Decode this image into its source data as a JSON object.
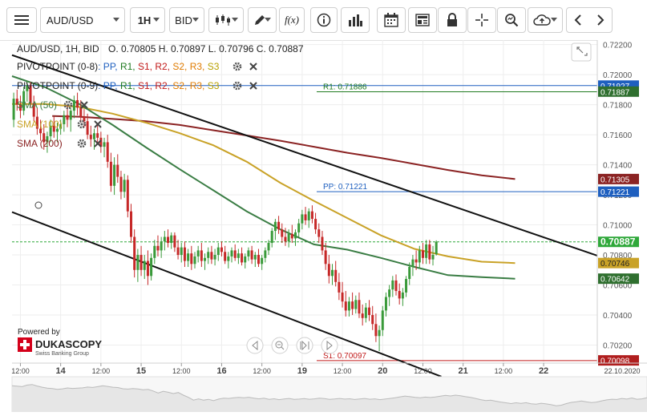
{
  "toolbar": {
    "symbol": "AUD/USD",
    "timeframe": "1H",
    "price_side": "BID",
    "fx_label": "f(x)"
  },
  "header": {
    "instrument_line": "AUD/USD, 1H, BID",
    "ohlc_line": "O. 0.70805 H. 0.70897 L. 0.70796 C. 0.70887"
  },
  "indicators": [
    {
      "name": "PIVOTPOINT (0-8)",
      "color": "#222222",
      "params": [
        {
          "t": ": PP,",
          "c": "#1e5fbf"
        },
        {
          "t": " R1,",
          "c": "#1f7a1f"
        },
        {
          "t": " S1,",
          "c": "#c21b1b"
        },
        {
          "t": " R2,",
          "c": "#c21b1b"
        },
        {
          "t": " S2,",
          "c": "#e07b00"
        },
        {
          "t": " R3,",
          "c": "#e07b00"
        },
        {
          "t": " S3",
          "c": "#b8a000"
        }
      ]
    },
    {
      "name": "PIVOTPOINT (0-9)",
      "color": "#222222",
      "params": [
        {
          "t": ": PP,",
          "c": "#1e5fbf"
        },
        {
          "t": " R1,",
          "c": "#1f7a1f"
        },
        {
          "t": " S1,",
          "c": "#c21b1b"
        },
        {
          "t": " R2,",
          "c": "#c21b1b"
        },
        {
          "t": " S2,",
          "c": "#e07b00"
        },
        {
          "t": " R3,",
          "c": "#e07b00"
        },
        {
          "t": " S3",
          "c": "#b8a000"
        }
      ]
    },
    {
      "name": "SMA (50)",
      "color": "#3a7d44",
      "params": []
    },
    {
      "name": "SMA (100)",
      "color": "#c9a227",
      "params": []
    },
    {
      "name": "SMA (200)",
      "color": "#8b2323",
      "params": []
    }
  ],
  "branding": {
    "powered_by": "Powered by",
    "logo_text": "DUKASCOPY",
    "logo_sub": "Swiss Banking Group"
  },
  "pivot_labels": {
    "r1": "R1: 0.71886",
    "pp": "PP: 0.71221",
    "s1": "S1: 0.70097"
  },
  "date_label": "22.10.2020",
  "colors": {
    "up": "#3a9a3a",
    "down": "#c62828",
    "sma50": "#3a7d44",
    "sma100": "#c9a227",
    "sma200": "#8b2323",
    "pp": "#1e5fbf",
    "r1": "#1f7a1f",
    "s1": "#c21b1b",
    "trend": "#111111"
  },
  "chart_data": {
    "type": "candlestick",
    "symbol": "AUD/USD",
    "timeframe": "1H",
    "ylim": [
      0.7008,
      0.7223
    ],
    "y_ticks": [
      "0.70200",
      "0.70400",
      "0.70600",
      "0.70800",
      "0.71000",
      "0.71200",
      "0.71400",
      "0.71600",
      "0.71800",
      "0.72000",
      "0.72200"
    ],
    "x_ticks": [
      {
        "label": "12:00",
        "t": 2.5
      },
      {
        "label": "14",
        "t": 14.5,
        "bold": true
      },
      {
        "label": "12:00",
        "t": 26.5
      },
      {
        "label": "15",
        "t": 38.5,
        "bold": true
      },
      {
        "label": "12:00",
        "t": 50.5
      },
      {
        "label": "16",
        "t": 62.5,
        "bold": true
      },
      {
        "label": "12:00",
        "t": 74.5
      },
      {
        "label": "19",
        "t": 86.5,
        "bold": true
      },
      {
        "label": "12:00",
        "t": 98.5
      },
      {
        "label": "20",
        "t": 110.5,
        "bold": true
      },
      {
        "label": "12:00",
        "t": 122.5
      },
      {
        "label": "21",
        "t": 134.5,
        "bold": true
      },
      {
        "label": "12:00",
        "t": 146.5
      },
      {
        "label": "22",
        "t": 158.5,
        "bold": true
      }
    ],
    "candles": [
      [
        0.717,
        0.7188,
        0.7165,
        0.7184
      ],
      [
        0.7184,
        0.719,
        0.7176,
        0.718
      ],
      [
        0.718,
        0.7186,
        0.7171,
        0.7176
      ],
      [
        0.7176,
        0.7192,
        0.7173,
        0.7189
      ],
      [
        0.7189,
        0.7196,
        0.7182,
        0.7193
      ],
      [
        0.7193,
        0.7195,
        0.7178,
        0.7181
      ],
      [
        0.7181,
        0.7186,
        0.7169,
        0.7172
      ],
      [
        0.7172,
        0.7178,
        0.716,
        0.7164
      ],
      [
        0.7164,
        0.717,
        0.7156,
        0.7161
      ],
      [
        0.7161,
        0.7167,
        0.715,
        0.7155
      ],
      [
        0.7155,
        0.7162,
        0.7148,
        0.7159
      ],
      [
        0.7159,
        0.717,
        0.7155,
        0.7166
      ],
      [
        0.7166,
        0.7172,
        0.7158,
        0.7162
      ],
      [
        0.7162,
        0.7168,
        0.7155,
        0.7164
      ],
      [
        0.7164,
        0.717,
        0.716,
        0.7167
      ],
      [
        0.7167,
        0.7176,
        0.7162,
        0.7173
      ],
      [
        0.7173,
        0.718,
        0.7165,
        0.717
      ],
      [
        0.717,
        0.7178,
        0.7162,
        0.7176
      ],
      [
        0.7176,
        0.7186,
        0.7171,
        0.7183
      ],
      [
        0.7183,
        0.7188,
        0.7173,
        0.7178
      ],
      [
        0.7178,
        0.7183,
        0.7168,
        0.7172
      ],
      [
        0.7172,
        0.7177,
        0.7165,
        0.7169
      ],
      [
        0.7169,
        0.7174,
        0.7157,
        0.716
      ],
      [
        0.716,
        0.7166,
        0.7152,
        0.7157
      ],
      [
        0.7157,
        0.7164,
        0.715,
        0.7161
      ],
      [
        0.7161,
        0.7167,
        0.7154,
        0.7158
      ],
      [
        0.7158,
        0.7162,
        0.7148,
        0.7152
      ],
      [
        0.7152,
        0.7158,
        0.7145,
        0.7155
      ],
      [
        0.7155,
        0.716,
        0.7138,
        0.7142
      ],
      [
        0.7142,
        0.7148,
        0.7122,
        0.7126
      ],
      [
        0.7126,
        0.7145,
        0.712,
        0.714
      ],
      [
        0.714,
        0.7147,
        0.7128,
        0.7132
      ],
      [
        0.7132,
        0.7136,
        0.7117,
        0.7122
      ],
      [
        0.7122,
        0.7134,
        0.7118,
        0.713
      ],
      [
        0.713,
        0.7133,
        0.7105,
        0.7109
      ],
      [
        0.7109,
        0.7114,
        0.7088,
        0.7092
      ],
      [
        0.7092,
        0.7097,
        0.7065,
        0.707
      ],
      [
        0.707,
        0.7084,
        0.7062,
        0.708
      ],
      [
        0.708,
        0.7086,
        0.7066,
        0.707
      ],
      [
        0.707,
        0.708,
        0.7064,
        0.7076
      ],
      [
        0.7076,
        0.7083,
        0.706,
        0.7066
      ],
      [
        0.7066,
        0.7081,
        0.7063,
        0.7078
      ],
      [
        0.7078,
        0.709,
        0.7074,
        0.7086
      ],
      [
        0.7086,
        0.7093,
        0.7079,
        0.7083
      ],
      [
        0.7083,
        0.7092,
        0.7078,
        0.7089
      ],
      [
        0.7089,
        0.7096,
        0.7083,
        0.7092
      ],
      [
        0.7092,
        0.7097,
        0.7085,
        0.7088
      ],
      [
        0.7088,
        0.7095,
        0.7084,
        0.7093
      ],
      [
        0.7093,
        0.7095,
        0.7082,
        0.7085
      ],
      [
        0.7085,
        0.709,
        0.7077,
        0.708
      ],
      [
        0.708,
        0.7088,
        0.7075,
        0.7085
      ],
      [
        0.7085,
        0.7089,
        0.7072,
        0.7076
      ],
      [
        0.7076,
        0.7084,
        0.7072,
        0.7081
      ],
      [
        0.7081,
        0.7086,
        0.707,
        0.7074
      ],
      [
        0.7074,
        0.7082,
        0.7071,
        0.7079
      ],
      [
        0.7079,
        0.7086,
        0.7075,
        0.7083
      ],
      [
        0.7083,
        0.7088,
        0.7072,
        0.7076
      ],
      [
        0.7076,
        0.7081,
        0.707,
        0.7078
      ],
      [
        0.7078,
        0.7085,
        0.7074,
        0.7082
      ],
      [
        0.7082,
        0.7086,
        0.7074,
        0.7077
      ],
      [
        0.7077,
        0.7084,
        0.7073,
        0.708
      ],
      [
        0.708,
        0.7088,
        0.7076,
        0.7085
      ],
      [
        0.7085,
        0.7089,
        0.7079,
        0.7082
      ],
      [
        0.7082,
        0.7086,
        0.7074,
        0.7076
      ],
      [
        0.7076,
        0.7082,
        0.7071,
        0.7079
      ],
      [
        0.7079,
        0.7085,
        0.7075,
        0.7083
      ],
      [
        0.7083,
        0.7087,
        0.7076,
        0.7078
      ],
      [
        0.7078,
        0.7084,
        0.7074,
        0.7081
      ],
      [
        0.7081,
        0.7085,
        0.7073,
        0.7075
      ],
      [
        0.7075,
        0.7081,
        0.7071,
        0.7079
      ],
      [
        0.7079,
        0.7085,
        0.7076,
        0.7083
      ],
      [
        0.7083,
        0.7086,
        0.7074,
        0.7077
      ],
      [
        0.7077,
        0.7082,
        0.7072,
        0.708
      ],
      [
        0.708,
        0.7084,
        0.7072,
        0.7074
      ],
      [
        0.7074,
        0.708,
        0.707,
        0.7078
      ],
      [
        0.7078,
        0.7085,
        0.7075,
        0.7083
      ],
      [
        0.7083,
        0.709,
        0.708,
        0.7088
      ],
      [
        0.7088,
        0.7098,
        0.7085,
        0.7096
      ],
      [
        0.7096,
        0.7104,
        0.709,
        0.7102
      ],
      [
        0.7102,
        0.7106,
        0.7094,
        0.7097
      ],
      [
        0.7097,
        0.7101,
        0.7088,
        0.7092
      ],
      [
        0.7092,
        0.7098,
        0.7086,
        0.7089
      ],
      [
        0.7089,
        0.7097,
        0.7085,
        0.7094
      ],
      [
        0.7094,
        0.71,
        0.7088,
        0.7091
      ],
      [
        0.7091,
        0.7097,
        0.7086,
        0.7095
      ],
      [
        0.7095,
        0.7104,
        0.7092,
        0.7101
      ],
      [
        0.7101,
        0.711,
        0.7097,
        0.7107
      ],
      [
        0.7107,
        0.7112,
        0.71,
        0.7103
      ],
      [
        0.7103,
        0.7111,
        0.7098,
        0.7109
      ],
      [
        0.7109,
        0.7113,
        0.7101,
        0.7104
      ],
      [
        0.7104,
        0.7108,
        0.7094,
        0.7097
      ],
      [
        0.7097,
        0.7101,
        0.7088,
        0.7092
      ],
      [
        0.7092,
        0.7096,
        0.708,
        0.7083
      ],
      [
        0.7083,
        0.7088,
        0.707,
        0.7074
      ],
      [
        0.7074,
        0.708,
        0.7061,
        0.7066
      ],
      [
        0.7066,
        0.7074,
        0.706,
        0.707
      ],
      [
        0.707,
        0.7076,
        0.7059,
        0.7062
      ],
      [
        0.7062,
        0.7068,
        0.705,
        0.7055
      ],
      [
        0.7055,
        0.7062,
        0.7045,
        0.7049
      ],
      [
        0.7049,
        0.7056,
        0.7039,
        0.7043
      ],
      [
        0.7043,
        0.7052,
        0.7039,
        0.7049
      ],
      [
        0.7049,
        0.7055,
        0.704,
        0.7044
      ],
      [
        0.7044,
        0.7053,
        0.7041,
        0.705
      ],
      [
        0.705,
        0.7055,
        0.7038,
        0.7041
      ],
      [
        0.7041,
        0.7047,
        0.7033,
        0.7038
      ],
      [
        0.7038,
        0.7048,
        0.7035,
        0.7045
      ],
      [
        0.7045,
        0.705,
        0.7036,
        0.704
      ],
      [
        0.704,
        0.7046,
        0.703,
        0.7034
      ],
      [
        0.7034,
        0.7041,
        0.7022,
        0.7026
      ],
      [
        0.7026,
        0.7033,
        0.7016,
        0.703
      ],
      [
        0.703,
        0.7046,
        0.7026,
        0.7043
      ],
      [
        0.7043,
        0.7055,
        0.7039,
        0.7052
      ],
      [
        0.7052,
        0.706,
        0.7046,
        0.7057
      ],
      [
        0.7057,
        0.7066,
        0.7052,
        0.7063
      ],
      [
        0.7063,
        0.7067,
        0.7053,
        0.7056
      ],
      [
        0.7056,
        0.7061,
        0.7047,
        0.7051
      ],
      [
        0.7051,
        0.7058,
        0.7046,
        0.7055
      ],
      [
        0.7055,
        0.7066,
        0.7052,
        0.7064
      ],
      [
        0.7064,
        0.7075,
        0.706,
        0.7072
      ],
      [
        0.7072,
        0.708,
        0.7066,
        0.7077
      ],
      [
        0.7077,
        0.7083,
        0.707,
        0.7075
      ],
      [
        0.7075,
        0.7086,
        0.7071,
        0.7083
      ],
      [
        0.7083,
        0.7088,
        0.7074,
        0.7078
      ],
      [
        0.7078,
        0.709,
        0.7074,
        0.7087
      ],
      [
        0.7087,
        0.709,
        0.7074,
        0.7077
      ],
      [
        0.7077,
        0.7086,
        0.7073,
        0.708
      ],
      [
        0.70805,
        0.70897,
        0.70796,
        0.70887
      ]
    ],
    "sma50": [
      [
        0,
        0.7199
      ],
      [
        10,
        0.71915
      ],
      [
        20,
        0.71805
      ],
      [
        30,
        0.71665
      ],
      [
        40,
        0.71515
      ],
      [
        50,
        0.7137
      ],
      [
        60,
        0.7123
      ],
      [
        70,
        0.7109
      ],
      [
        80,
        0.7097
      ],
      [
        90,
        0.7087
      ],
      [
        100,
        0.70835
      ],
      [
        110,
        0.7078
      ],
      [
        120,
        0.7072
      ],
      [
        130,
        0.70665
      ],
      [
        140,
        0.70652
      ],
      [
        150,
        0.70642
      ]
    ],
    "sma100": [
      [
        0,
        0.71805
      ],
      [
        10,
        0.71805
      ],
      [
        20,
        0.71785
      ],
      [
        30,
        0.7174
      ],
      [
        40,
        0.7168
      ],
      [
        50,
        0.7161
      ],
      [
        60,
        0.7153
      ],
      [
        70,
        0.7142
      ],
      [
        80,
        0.7128
      ],
      [
        90,
        0.7116
      ],
      [
        100,
        0.71045
      ],
      [
        110,
        0.7093
      ],
      [
        120,
        0.7084
      ],
      [
        130,
        0.7079
      ],
      [
        140,
        0.70755
      ],
      [
        150,
        0.70746
      ]
    ],
    "sma200": [
      [
        12,
        0.71725
      ],
      [
        20,
        0.7172
      ],
      [
        30,
        0.71705
      ],
      [
        40,
        0.7169
      ],
      [
        50,
        0.71665
      ],
      [
        60,
        0.7163
      ],
      [
        70,
        0.71595
      ],
      [
        80,
        0.7156
      ],
      [
        90,
        0.7152
      ],
      [
        100,
        0.7148
      ],
      [
        110,
        0.71445
      ],
      [
        120,
        0.71405
      ],
      [
        130,
        0.71365
      ],
      [
        140,
        0.7133
      ],
      [
        150,
        0.71305
      ]
    ],
    "trendlines": [
      {
        "x1": 0,
        "y1": 0.7213,
        "x2": 174.5,
        "y2": 0.70795
      },
      {
        "x1": 0,
        "y1": 0.71085,
        "x2": 128,
        "y2": 0.6999
      }
    ],
    "pivot_levels": [
      {
        "name": "R1",
        "value": 0.71886,
        "color": "#1f7a1f"
      },
      {
        "name": "PP",
        "value": 0.71221,
        "color": "#1e5fbf"
      },
      {
        "name": "S1",
        "value": 0.70097,
        "color": "#c21b1b"
      }
    ],
    "right_labels": [
      {
        "text": "0.71927",
        "value": 0.71927,
        "bg": "#1e5fbf",
        "fg": "#ffffff"
      },
      {
        "text": "0.71887",
        "value": 0.71887,
        "bg": "#2f6f2f",
        "fg": "#ffffff"
      },
      {
        "text": "0.71305",
        "value": 0.71305,
        "bg": "#8b2323",
        "fg": "#ffffff"
      },
      {
        "text": "0.71221",
        "value": 0.71221,
        "bg": "#1e5fbf",
        "fg": "#ffffff"
      },
      {
        "text": "0.70887",
        "value": 0.70887,
        "bg": "#2fa83a",
        "fg": "#ffffff",
        "bold": true
      },
      {
        "text": "0.70746",
        "value": 0.70746,
        "bg": "#c9a227",
        "fg": "#222222"
      },
      {
        "text": "0.70642",
        "value": 0.70642,
        "bg": "#2f6f2f",
        "fg": "#ffffff"
      },
      {
        "text": "0.70098",
        "value": 0.70098,
        "bg": "#b01e1e",
        "fg": "#ffffff"
      }
    ],
    "last_price": 0.70887
  }
}
